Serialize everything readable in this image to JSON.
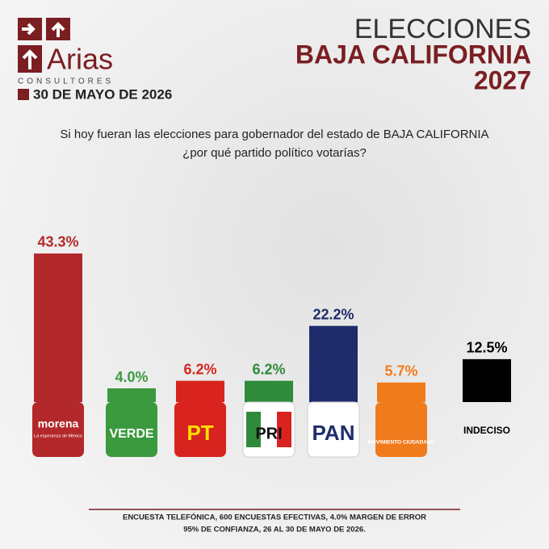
{
  "brand": {
    "name": "Arias",
    "subtitle": "CONSULTORES",
    "date": "30 DE MAYO DE 2026"
  },
  "header": {
    "line1": "ELECCIONES",
    "line2": "BAJA CALIFORNIA",
    "line3": "2027"
  },
  "chart_data": {
    "type": "bar",
    "question": [
      "Si hoy fueran las elecciones para gobernador del estado de BAJA CALIFORNIA",
      "¿por qué partido político votarías?"
    ],
    "categories": [
      "morena",
      "VERDE",
      "PT",
      "PRI",
      "PAN",
      "MOVIMIENTO CIUDADANO",
      "INDECISO"
    ],
    "morena_tagline": "La esperanza de México",
    "values": [
      43.3,
      4.0,
      6.2,
      6.2,
      22.2,
      5.7,
      12.5
    ],
    "value_labels": [
      "43.3%",
      "4.0%",
      "6.2%",
      "6.2%",
      "22.2%",
      "5.7%",
      "12.5%"
    ],
    "colors": [
      "#b3282b",
      "#3c9a3e",
      "#d8231f",
      "#2f8a3b",
      "#1f2c6c",
      "#f07b1d",
      "#000000"
    ],
    "label_colors": [
      "#b3282b",
      "#3c9a3e",
      "#d8231f",
      "#2f8a3b",
      "#1f2c6c",
      "#f07b1d",
      "#000000"
    ]
  },
  "footer": [
    "ENCUESTA TELEFÓNICA, 600 ENCUESTAS EFECTIVAS, 4.0%  MARGEN DE ERROR",
    "95% DE CONFIANZA, 26 AL 30 DE MAYO DE 2026."
  ]
}
